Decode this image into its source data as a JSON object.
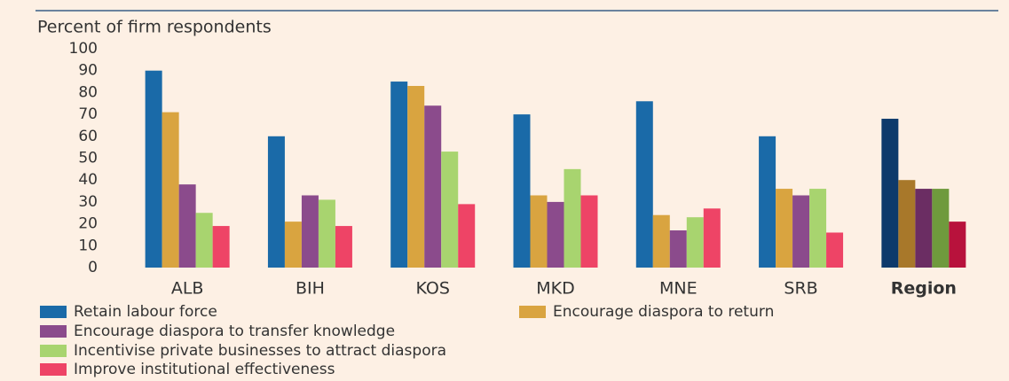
{
  "chart_data": {
    "type": "bar",
    "y_label": "Percent of firm respondents",
    "categories": [
      "ALB",
      "BIH",
      "KOS",
      "MKD",
      "MNE",
      "SRB",
      "Region"
    ],
    "series": [
      {
        "name": "Retain labour force",
        "color": "#1a6aa8",
        "colors": [
          "#1a6aa8",
          "#1a6aa8",
          "#1a6aa8",
          "#1a6aa8",
          "#1a6aa8",
          "#1a6aa8",
          "#0d3a6b"
        ],
        "values": [
          90,
          60,
          85,
          70,
          76,
          60,
          68
        ]
      },
      {
        "name": "Encourage diaspora to return",
        "color": "#d9a440",
        "colors": [
          "#d9a440",
          "#d9a440",
          "#d9a440",
          "#d9a440",
          "#d9a440",
          "#d9a440",
          "#a8782a"
        ],
        "values": [
          71,
          21,
          83,
          33,
          24,
          36,
          40
        ]
      },
      {
        "name": "Encourage diaspora to transfer knowledge",
        "color": "#8b4b8c",
        "colors": [
          "#8b4b8c",
          "#8b4b8c",
          "#8b4b8c",
          "#8b4b8c",
          "#8b4b8c",
          "#8b4b8c",
          "#6b2d63"
        ],
        "values": [
          38,
          33,
          74,
          30,
          17,
          33,
          36
        ]
      },
      {
        "name": "Incentivise private businesses to attract diaspora",
        "color": "#a8d46f",
        "colors": [
          "#a8d46f",
          "#a8d46f",
          "#a8d46f",
          "#a8d46f",
          "#a8d46f",
          "#a8d46f",
          "#6f9a3d"
        ],
        "values": [
          25,
          31,
          53,
          45,
          23,
          36,
          36
        ]
      },
      {
        "name": "Improve institutional effectiveness",
        "color": "#ee4466",
        "colors": [
          "#ee4466",
          "#ee4466",
          "#ee4466",
          "#ee4466",
          "#ee4466",
          "#ee4466",
          "#b8123c"
        ],
        "values": [
          19,
          19,
          29,
          33,
          27,
          16,
          21
        ]
      }
    ],
    "ylim": [
      0,
      100
    ],
    "yticks": [
      0,
      10,
      20,
      30,
      40,
      50,
      60,
      70,
      80,
      90,
      100
    ],
    "grid": false
  }
}
